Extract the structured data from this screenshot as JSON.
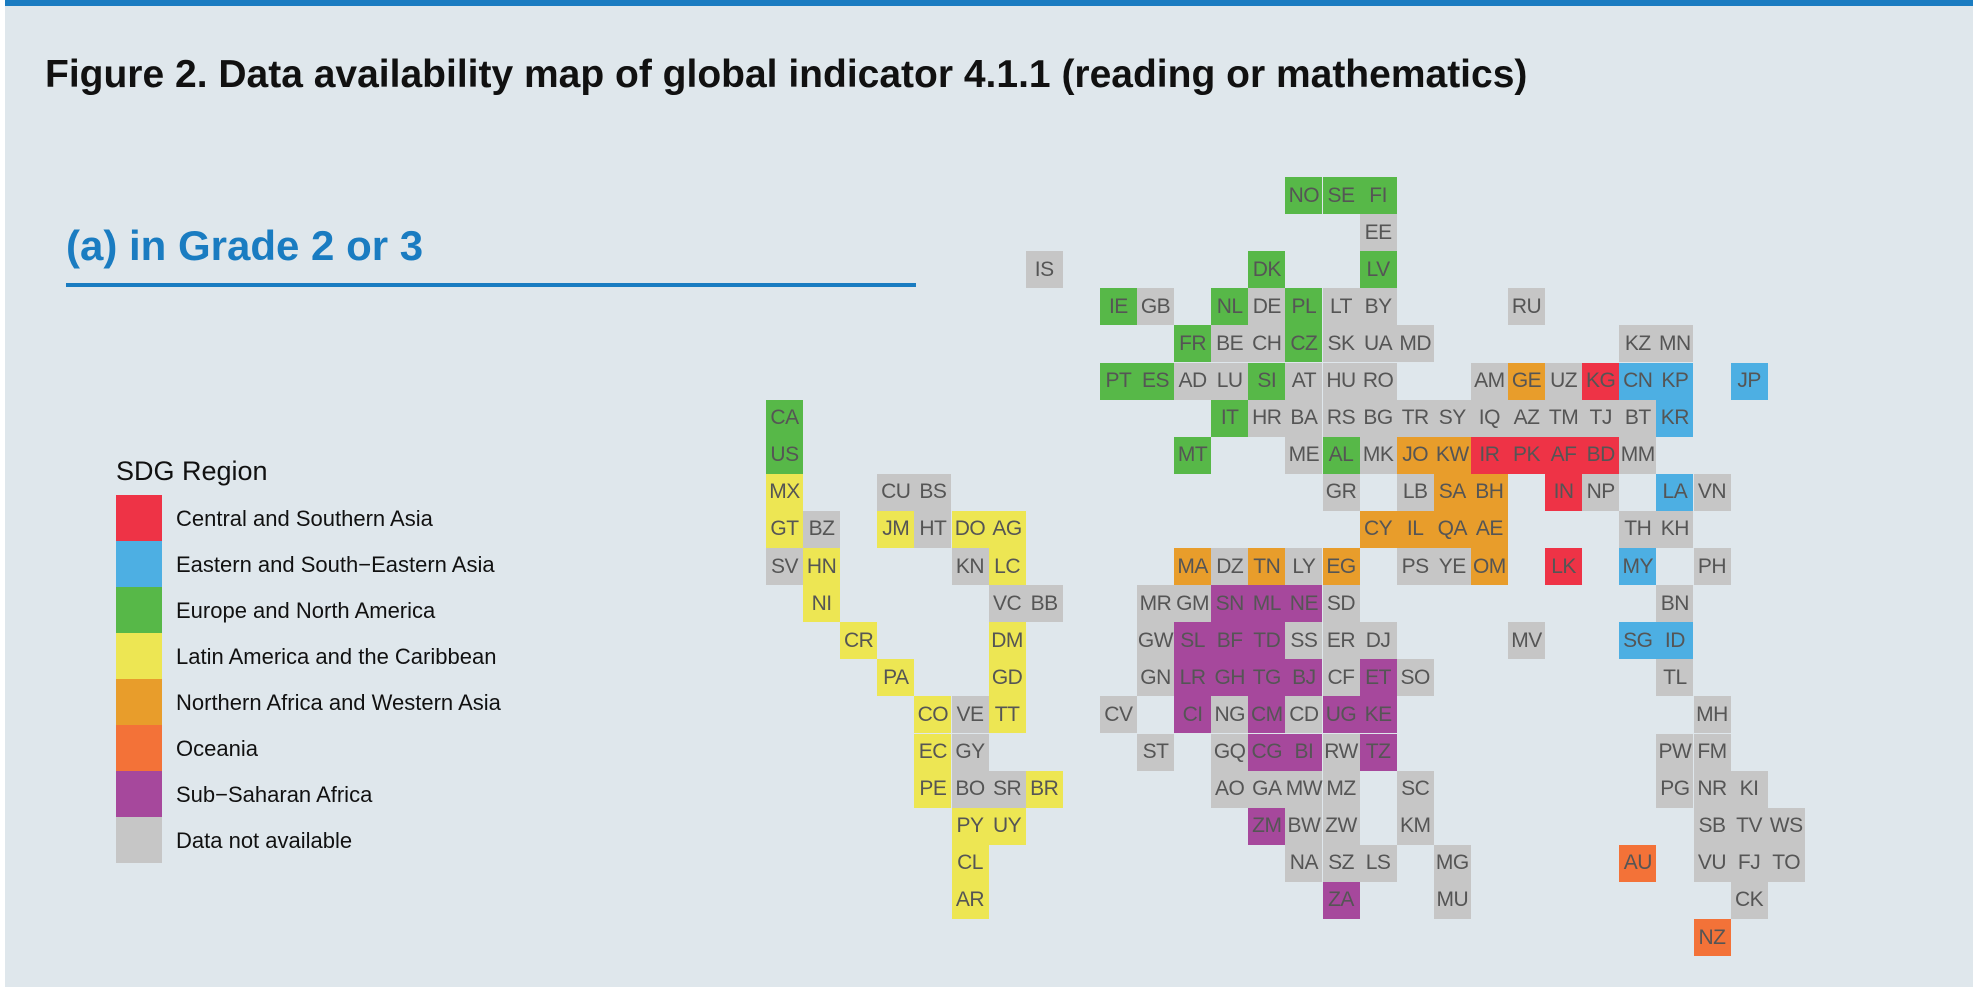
{
  "figure_title": "Figure 2. Data availability map of global indicator 4.1.1 (reading or mathematics)",
  "panel_title": "(a) in Grade 2 or 3",
  "legend": {
    "title": "SDG Region",
    "items": [
      {
        "key": "CSA",
        "label": "Central and Southern Asia",
        "color": "#ee3346"
      },
      {
        "key": "ESEA",
        "label": "Eastern and South−Eastern Asia",
        "color": "#4dafe3"
      },
      {
        "key": "ENA",
        "label": "Europe and North America",
        "color": "#57b848"
      },
      {
        "key": "LAC",
        "label": "Latin America and the Caribbean",
        "color": "#ede653"
      },
      {
        "key": "NAWA",
        "label": "Northern Africa and Western Asia",
        "color": "#e89d2b"
      },
      {
        "key": "OCE",
        "label": "Oceania",
        "color": "#f37238"
      },
      {
        "key": "SSA",
        "label": "Sub−Saharan Africa",
        "color": "#a6489c"
      },
      {
        "key": "NA",
        "label": "Data not available",
        "color": "#c6c6c6"
      }
    ]
  },
  "tiles": [
    [
      "NO",
      14,
      0,
      "ENA"
    ],
    [
      "SE",
      15,
      0,
      "ENA"
    ],
    [
      "FI",
      16,
      0,
      "ENA"
    ],
    [
      "EE",
      16,
      1,
      "NA"
    ],
    [
      "IS",
      7,
      2,
      "NA"
    ],
    [
      "DK",
      13,
      2,
      "ENA"
    ],
    [
      "LV",
      16,
      2,
      "ENA"
    ],
    [
      "IE",
      9,
      3,
      "ENA"
    ],
    [
      "GB",
      10,
      3,
      "NA"
    ],
    [
      "NL",
      12,
      3,
      "ENA"
    ],
    [
      "DE",
      13,
      3,
      "NA"
    ],
    [
      "PL",
      14,
      3,
      "ENA"
    ],
    [
      "LT",
      15,
      3,
      "NA"
    ],
    [
      "BY",
      16,
      3,
      "NA"
    ],
    [
      "RU",
      20,
      3,
      "NA"
    ],
    [
      "FR",
      11,
      4,
      "ENA"
    ],
    [
      "BE",
      12,
      4,
      "NA"
    ],
    [
      "CH",
      13,
      4,
      "NA"
    ],
    [
      "CZ",
      14,
      4,
      "ENA"
    ],
    [
      "SK",
      15,
      4,
      "NA"
    ],
    [
      "UA",
      16,
      4,
      "NA"
    ],
    [
      "MD",
      17,
      4,
      "NA"
    ],
    [
      "KZ",
      23,
      4,
      "NA"
    ],
    [
      "MN",
      24,
      4,
      "NA"
    ],
    [
      "PT",
      9,
      5,
      "ENA"
    ],
    [
      "ES",
      10,
      5,
      "ENA"
    ],
    [
      "AD",
      11,
      5,
      "NA"
    ],
    [
      "LU",
      12,
      5,
      "NA"
    ],
    [
      "SI",
      13,
      5,
      "ENA"
    ],
    [
      "AT",
      14,
      5,
      "NA"
    ],
    [
      "HU",
      15,
      5,
      "NA"
    ],
    [
      "RO",
      16,
      5,
      "NA"
    ],
    [
      "AM",
      19,
      5,
      "NA"
    ],
    [
      "GE",
      20,
      5,
      "NAWA"
    ],
    [
      "UZ",
      21,
      5,
      "NA"
    ],
    [
      "KG",
      22,
      5,
      "CSA"
    ],
    [
      "CN",
      23,
      5,
      "ESEA"
    ],
    [
      "KP",
      24,
      5,
      "ESEA"
    ],
    [
      "JP",
      26,
      5,
      "ESEA"
    ],
    [
      "CA",
      0,
      6,
      "ENA"
    ],
    [
      "IT",
      12,
      6,
      "ENA"
    ],
    [
      "HR",
      13,
      6,
      "NA"
    ],
    [
      "BA",
      14,
      6,
      "NA"
    ],
    [
      "RS",
      15,
      6,
      "NA"
    ],
    [
      "BG",
      16,
      6,
      "NA"
    ],
    [
      "TR",
      17,
      6,
      "NA"
    ],
    [
      "SY",
      18,
      6,
      "NA"
    ],
    [
      "IQ",
      19,
      6,
      "NA"
    ],
    [
      "AZ",
      20,
      6,
      "NA"
    ],
    [
      "TM",
      21,
      6,
      "NA"
    ],
    [
      "TJ",
      22,
      6,
      "NA"
    ],
    [
      "BT",
      23,
      6,
      "NA"
    ],
    [
      "KR",
      24,
      6,
      "ESEA"
    ],
    [
      "US",
      0,
      7,
      "ENA"
    ],
    [
      "MT",
      11,
      7,
      "ENA"
    ],
    [
      "ME",
      14,
      7,
      "NA"
    ],
    [
      "AL",
      15,
      7,
      "ENA"
    ],
    [
      "MK",
      16,
      7,
      "NA"
    ],
    [
      "JO",
      17,
      7,
      "NAWA"
    ],
    [
      "KW",
      18,
      7,
      "NAWA"
    ],
    [
      "IR",
      19,
      7,
      "CSA"
    ],
    [
      "PK",
      20,
      7,
      "CSA"
    ],
    [
      "AF",
      21,
      7,
      "CSA"
    ],
    [
      "BD",
      22,
      7,
      "CSA"
    ],
    [
      "MM",
      23,
      7,
      "NA"
    ],
    [
      "MX",
      0,
      8,
      "LAC"
    ],
    [
      "CU",
      3,
      8,
      "NA"
    ],
    [
      "BS",
      4,
      8,
      "NA"
    ],
    [
      "GR",
      15,
      8,
      "NA"
    ],
    [
      "LB",
      17,
      8,
      "NA"
    ],
    [
      "SA",
      18,
      8,
      "NAWA"
    ],
    [
      "BH",
      19,
      8,
      "NAWA"
    ],
    [
      "IN",
      21,
      8,
      "CSA"
    ],
    [
      "NP",
      22,
      8,
      "NA"
    ],
    [
      "LA",
      24,
      8,
      "ESEA"
    ],
    [
      "VN",
      25,
      8,
      "NA"
    ],
    [
      "GT",
      0,
      9,
      "LAC"
    ],
    [
      "BZ",
      1,
      9,
      "NA"
    ],
    [
      "JM",
      3,
      9,
      "LAC"
    ],
    [
      "HT",
      4,
      9,
      "NA"
    ],
    [
      "DO",
      5,
      9,
      "LAC"
    ],
    [
      "AG",
      6,
      9,
      "LAC"
    ],
    [
      "CY",
      16,
      9,
      "NAWA"
    ],
    [
      "IL",
      17,
      9,
      "NAWA"
    ],
    [
      "QA",
      18,
      9,
      "NAWA"
    ],
    [
      "AE",
      19,
      9,
      "NAWA"
    ],
    [
      "TH",
      23,
      9,
      "NA"
    ],
    [
      "KH",
      24,
      9,
      "NA"
    ],
    [
      "SV",
      0,
      10,
      "NA"
    ],
    [
      "HN",
      1,
      10,
      "LAC"
    ],
    [
      "KN",
      5,
      10,
      "NA"
    ],
    [
      "LC",
      6,
      10,
      "LAC"
    ],
    [
      "MA",
      11,
      10,
      "NAWA"
    ],
    [
      "DZ",
      12,
      10,
      "NA"
    ],
    [
      "TN",
      13,
      10,
      "NAWA"
    ],
    [
      "LY",
      14,
      10,
      "NA"
    ],
    [
      "EG",
      15,
      10,
      "NAWA"
    ],
    [
      "PS",
      17,
      10,
      "NA"
    ],
    [
      "YE",
      18,
      10,
      "NA"
    ],
    [
      "OM",
      19,
      10,
      "NAWA"
    ],
    [
      "LK",
      21,
      10,
      "CSA"
    ],
    [
      "MY",
      23,
      10,
      "ESEA"
    ],
    [
      "PH",
      25,
      10,
      "NA"
    ],
    [
      "NI",
      1,
      11,
      "LAC"
    ],
    [
      "VC",
      6,
      11,
      "NA"
    ],
    [
      "BB",
      7,
      11,
      "NA"
    ],
    [
      "MR",
      10,
      11,
      "NA"
    ],
    [
      "GM",
      11,
      11,
      "NA"
    ],
    [
      "SN",
      12,
      11,
      "SSA"
    ],
    [
      "ML",
      13,
      11,
      "SSA"
    ],
    [
      "NE",
      14,
      11,
      "SSA"
    ],
    [
      "SD",
      15,
      11,
      "NA"
    ],
    [
      "BN",
      24,
      11,
      "NA"
    ],
    [
      "CR",
      2,
      12,
      "LAC"
    ],
    [
      "DM",
      6,
      12,
      "LAC"
    ],
    [
      "GW",
      10,
      12,
      "NA"
    ],
    [
      "SL",
      11,
      12,
      "SSA"
    ],
    [
      "BF",
      12,
      12,
      "SSA"
    ],
    [
      "TD",
      13,
      12,
      "SSA"
    ],
    [
      "SS",
      14,
      12,
      "NA"
    ],
    [
      "ER",
      15,
      12,
      "NA"
    ],
    [
      "DJ",
      16,
      12,
      "NA"
    ],
    [
      "MV",
      20,
      12,
      "NA"
    ],
    [
      "SG",
      23,
      12,
      "ESEA"
    ],
    [
      "ID",
      24,
      12,
      "ESEA"
    ],
    [
      "PA",
      3,
      13,
      "LAC"
    ],
    [
      "GD",
      6,
      13,
      "LAC"
    ],
    [
      "GN",
      10,
      13,
      "NA"
    ],
    [
      "LR",
      11,
      13,
      "SSA"
    ],
    [
      "GH",
      12,
      13,
      "SSA"
    ],
    [
      "TG",
      13,
      13,
      "SSA"
    ],
    [
      "BJ",
      14,
      13,
      "SSA"
    ],
    [
      "CF",
      15,
      13,
      "NA"
    ],
    [
      "ET",
      16,
      13,
      "SSA"
    ],
    [
      "SO",
      17,
      13,
      "NA"
    ],
    [
      "TL",
      24,
      13,
      "NA"
    ],
    [
      "CO",
      4,
      14,
      "LAC"
    ],
    [
      "VE",
      5,
      14,
      "NA"
    ],
    [
      "TT",
      6,
      14,
      "LAC"
    ],
    [
      "CV",
      9,
      14,
      "NA"
    ],
    [
      "CI",
      11,
      14,
      "SSA"
    ],
    [
      "NG",
      12,
      14,
      "NA"
    ],
    [
      "CM",
      13,
      14,
      "SSA"
    ],
    [
      "CD",
      14,
      14,
      "NA"
    ],
    [
      "UG",
      15,
      14,
      "SSA"
    ],
    [
      "KE",
      16,
      14,
      "SSA"
    ],
    [
      "MH",
      25,
      14,
      "NA"
    ],
    [
      "EC",
      4,
      15,
      "LAC"
    ],
    [
      "GY",
      5,
      15,
      "NA"
    ],
    [
      "ST",
      10,
      15,
      "NA"
    ],
    [
      "GQ",
      12,
      15,
      "NA"
    ],
    [
      "CG",
      13,
      15,
      "SSA"
    ],
    [
      "BI",
      14,
      15,
      "SSA"
    ],
    [
      "RW",
      15,
      15,
      "NA"
    ],
    [
      "TZ",
      16,
      15,
      "SSA"
    ],
    [
      "PW",
      24,
      15,
      "NA"
    ],
    [
      "FM",
      25,
      15,
      "NA"
    ],
    [
      "PE",
      4,
      16,
      "LAC"
    ],
    [
      "BO",
      5,
      16,
      "NA"
    ],
    [
      "SR",
      6,
      16,
      "NA"
    ],
    [
      "BR",
      7,
      16,
      "LAC"
    ],
    [
      "AO",
      12,
      16,
      "NA"
    ],
    [
      "GA",
      13,
      16,
      "NA"
    ],
    [
      "MW",
      14,
      16,
      "NA"
    ],
    [
      "MZ",
      15,
      16,
      "NA"
    ],
    [
      "SC",
      17,
      16,
      "NA"
    ],
    [
      "PG",
      24,
      16,
      "NA"
    ],
    [
      "NR",
      25,
      16,
      "NA"
    ],
    [
      "KI",
      26,
      16,
      "NA"
    ],
    [
      "PY",
      5,
      17,
      "LAC"
    ],
    [
      "UY",
      6,
      17,
      "LAC"
    ],
    [
      "ZM",
      13,
      17,
      "SSA"
    ],
    [
      "BW",
      14,
      17,
      "NA"
    ],
    [
      "ZW",
      15,
      17,
      "NA"
    ],
    [
      "KM",
      17,
      17,
      "NA"
    ],
    [
      "SB",
      25,
      17,
      "NA"
    ],
    [
      "TV",
      26,
      17,
      "NA"
    ],
    [
      "WS",
      27,
      17,
      "NA"
    ],
    [
      "CL",
      5,
      18,
      "LAC"
    ],
    [
      "NA",
      14,
      18,
      "NA"
    ],
    [
      "SZ",
      15,
      18,
      "NA"
    ],
    [
      "LS",
      16,
      18,
      "NA"
    ],
    [
      "MG",
      18,
      18,
      "NA"
    ],
    [
      "AU",
      23,
      18,
      "OCE"
    ],
    [
      "VU",
      25,
      18,
      "NA"
    ],
    [
      "FJ",
      26,
      18,
      "NA"
    ],
    [
      "TO",
      27,
      18,
      "NA"
    ],
    [
      "AR",
      5,
      19,
      "LAC"
    ],
    [
      "ZA",
      15,
      19,
      "SSA"
    ],
    [
      "MU",
      18,
      19,
      "NA"
    ],
    [
      "CK",
      26,
      19,
      "NA"
    ],
    [
      "NZ",
      25,
      20,
      "OCE"
    ]
  ]
}
